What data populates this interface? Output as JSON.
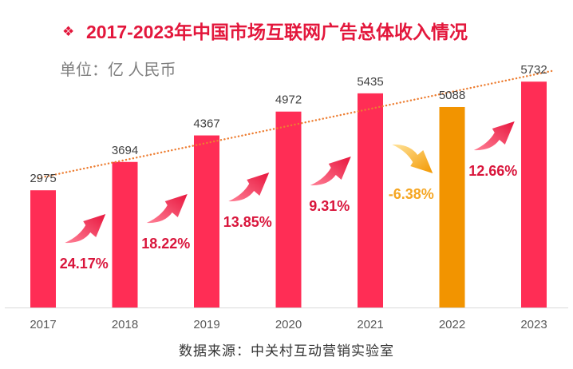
{
  "chart_data": {
    "type": "bar",
    "title_bullet": "❖",
    "title": "2017-2023年中国市场互联网广告总体收入情况",
    "unit": "单位：亿 人民币",
    "categories": [
      "2017",
      "2018",
      "2019",
      "2020",
      "2021",
      "2022",
      "2023"
    ],
    "values": [
      2975,
      3694,
      4367,
      4972,
      5435,
      5088,
      5732
    ],
    "growth_rates": [
      "24.17%",
      "18.22%",
      "13.85%",
      "9.31%",
      "-6.38%",
      "12.66%"
    ],
    "xlabel": "",
    "ylabel": "",
    "ylim": [
      0,
      6000
    ],
    "grid": false,
    "legend": false,
    "trendline": true,
    "data_labels": true
  },
  "source": "数据来源：中关村互动营销实验室",
  "icons": {
    "increase": "curved-arrow-up-icon",
    "decrease": "curved-arrow-down-icon"
  },
  "colors": {
    "title": "#E3173C",
    "unit": "#7F7F7F",
    "source": "#333333",
    "bar": "#FF2D55",
    "bar_decrease": "#F29400",
    "value_label": "#404040",
    "axis_label": "#595959",
    "axis_line": "#D9D9D9",
    "trend_line": "#ED7D31",
    "growth_increase": "#D9163C",
    "growth_decrease": "#F5A623",
    "arrow_increase_tail": "#FF8096",
    "arrow_increase_head": "#E8163E",
    "arrow_decrease_tail": "#FFE39A",
    "arrow_decrease_head": "#F39800"
  }
}
